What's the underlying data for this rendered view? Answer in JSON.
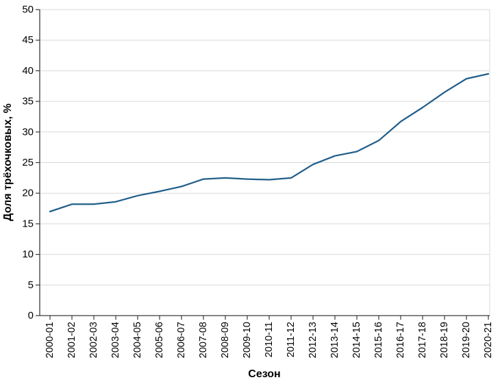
{
  "chart_data": {
    "type": "line",
    "title": "",
    "xlabel": "Сезон",
    "ylabel": "Доля трёхочковых, %",
    "ylim": [
      0,
      50
    ],
    "ytick_step": 5,
    "grid": "horizontal",
    "legend_position": "none",
    "x_tick_rotation": 90,
    "categories": [
      "2000-01",
      "2001-02",
      "2002-03",
      "2003-04",
      "2004-05",
      "2005-06",
      "2006-07",
      "2007-08",
      "2008-09",
      "2009-10",
      "2010-11",
      "2011-12",
      "2012-13",
      "2013-14",
      "2014-15",
      "2015-16",
      "2016-17",
      "2017-18",
      "2018-19",
      "2019-20",
      "2020-21"
    ],
    "series": [
      {
        "name": "Доля трёхочковых, %",
        "values": [
          17.0,
          18.2,
          18.2,
          18.6,
          19.6,
          20.3,
          21.1,
          22.3,
          22.5,
          22.3,
          22.2,
          22.5,
          24.7,
          26.1,
          26.8,
          28.6,
          31.7,
          34.0,
          36.5,
          38.7,
          39.5
        ]
      }
    ]
  },
  "colors": {
    "line": "#215e8a",
    "grid": "#d9d9d9",
    "axis": "#3a3a3a",
    "text": "#000000",
    "background": "#ffffff"
  }
}
